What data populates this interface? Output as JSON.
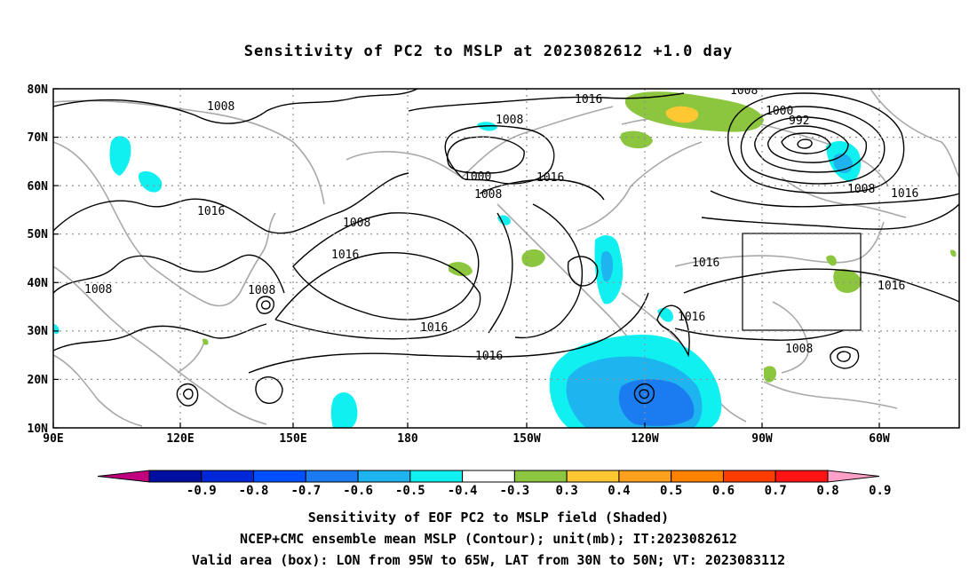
{
  "title": "Sensitivity of PC2 to MSLP at 2023082612 +1.0 day",
  "lat_labels": [
    "80N",
    "70N",
    "60N",
    "50N",
    "40N",
    "30N",
    "20N",
    "10N"
  ],
  "lon_labels": [
    "90E",
    "120E",
    "150E",
    "180",
    "150W",
    "120W",
    "90W",
    "60W"
  ],
  "contour_labels": [
    "1008",
    "1016",
    "1008",
    "1000",
    "1008",
    "1016",
    "1016",
    "1008",
    "1008",
    "1000",
    "992",
    "1008",
    "1016",
    "1016",
    "1016",
    "1016",
    "1016",
    "1008",
    "1008",
    "1008"
  ],
  "colorbar": {
    "colors": [
      "#c0007f",
      "#000fa0",
      "#0028d9",
      "#0050ff",
      "#1a7cf0",
      "#1eb4f0",
      "#10f0f0",
      "#ffffff",
      "#8cc63f",
      "#ffc832",
      "#ffa01e",
      "#ff8200",
      "#ff3c00",
      "#ff1414",
      "#ffa0c8"
    ],
    "labels": [
      "-0.9",
      "-0.8",
      "-0.7",
      "-0.6",
      "-0.5",
      "-0.4",
      "-0.3",
      "0.3",
      "0.4",
      "0.5",
      "0.6",
      "0.7",
      "0.8",
      "0.9"
    ]
  },
  "captions": [
    "Sensitivity of EOF PC2 to MSLP field (Shaded)",
    "NCEP+CMC ensemble mean MSLP (Contour); unit(mb); IT:2023082612",
    "Valid area (box): LON from 95W to 65W, LAT from 30N to 50N; VT: 2023083112"
  ],
  "map_extent": {
    "lon": [
      "90E",
      "40W"
    ],
    "lat": [
      "10N",
      "80N"
    ]
  },
  "valid_box": {
    "lon": [
      "95W",
      "65W"
    ],
    "lat": [
      "30N",
      "50N"
    ]
  },
  "colors": {
    "land_outline": "#a0a0a0",
    "contour": "#000000",
    "grid": "#909090"
  }
}
